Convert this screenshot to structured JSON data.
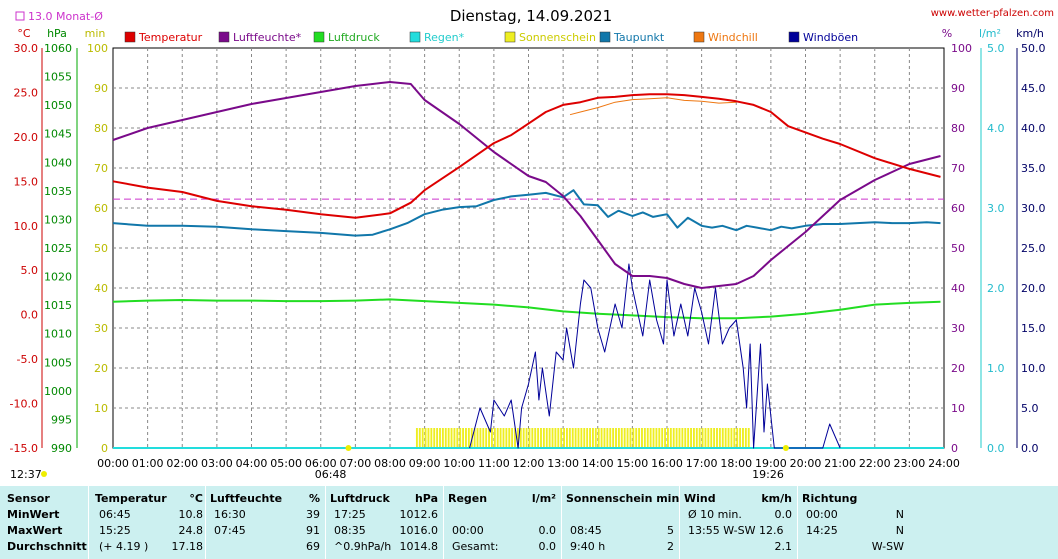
{
  "header": {
    "title": "Dienstag, 14.09.2021",
    "site": "www.wetter-pfalzen.com",
    "month_avg": "13.0 Monat-Ø",
    "sunrise": "06:48",
    "sunset": "19:26",
    "now_time": "12:37"
  },
  "axis_units": {
    "temp": "°C",
    "pressure": "hPa",
    "sun": "min",
    "humidity": "%",
    "rain": "l/m²",
    "wind": "km/h"
  },
  "colors": {
    "temperature": "#dd0000",
    "humidity": "#7a0a8a",
    "pressure": "#22dd22",
    "rain": "#22dddd",
    "sunshine": "#eeee22",
    "dewpoint": "#1177aa",
    "windchill": "#ee7711",
    "gusts": "#000099",
    "month_avg_line": "#cc33cc",
    "stats_bg": "#ccf0f0"
  },
  "chart_data": {
    "type": "line",
    "title": "Dienstag, 14.09.2021",
    "x_ticks": [
      "00:00",
      "01:00",
      "02:00",
      "03:00",
      "04:00",
      "05:00",
      "06:00",
      "07:00",
      "08:00",
      "09:00",
      "10:00",
      "11:00",
      "12:00",
      "13:00",
      "14:00",
      "15:00",
      "16:00",
      "17:00",
      "18:00",
      "19:00",
      "20:00",
      "21:00",
      "22:00",
      "23:00",
      "24:00"
    ],
    "legend": [
      "Temperatur",
      "Luftfeuchte*",
      "Luftdruck",
      "Regen*",
      "Sonnenschein",
      "Taupunkt",
      "Windchill",
      "Windböen"
    ],
    "axes": {
      "temp": {
        "label": "°C",
        "range": [
          -15,
          30
        ],
        "ticks": [
          "30.0",
          "25.0",
          "20.0",
          "15.0",
          "10.0",
          "5.0",
          "0.0",
          "-5.0",
          "-10.0",
          "-15.0"
        ]
      },
      "pressure": {
        "label": "hPa",
        "range": [
          990,
          1060
        ],
        "ticks": [
          "1060",
          "1055",
          "1050",
          "1045",
          "1040",
          "1035",
          "1030",
          "1025",
          "1020",
          "1015",
          "1010",
          "1005",
          "1000",
          "995",
          "990"
        ]
      },
      "sun": {
        "label": "min",
        "range": [
          0,
          100
        ],
        "ticks": [
          "100",
          "90",
          "80",
          "70",
          "60",
          "50",
          "40",
          "30",
          "20",
          "10",
          "0"
        ]
      },
      "humidity": {
        "label": "%",
        "range": [
          0,
          100
        ],
        "ticks": [
          "100",
          "90",
          "80",
          "70",
          "60",
          "50",
          "40",
          "30",
          "20",
          "10",
          "0"
        ]
      },
      "rain": {
        "label": "l/m²",
        "range": [
          0,
          5
        ],
        "ticks": [
          "5.0",
          "4.0",
          "3.0",
          "2.0",
          "1.0",
          "0.0"
        ]
      },
      "wind": {
        "label": "km/h",
        "range": [
          0,
          50
        ],
        "ticks": [
          "50.0",
          "45.0",
          "40.0",
          "35.0",
          "30.0",
          "25.0",
          "20.0",
          "15.0",
          "10.0",
          "5.0",
          "0.0"
        ]
      }
    },
    "month_avg_temp": 13.0,
    "series": [
      {
        "name": "Temperatur",
        "axis": "temp",
        "x": [
          0,
          1,
          2,
          3,
          4,
          5,
          6,
          7,
          8,
          8.6,
          9,
          10,
          11,
          11.5,
          12,
          12.5,
          13,
          13.5,
          14,
          14.5,
          15,
          15.5,
          16,
          16.5,
          17,
          17.5,
          18,
          18.5,
          19,
          19.5,
          20,
          20.5,
          21,
          22,
          23,
          23.9
        ],
        "y": [
          15.0,
          14.3,
          13.8,
          12.8,
          12.2,
          11.8,
          11.3,
          10.9,
          11.4,
          12.6,
          14.0,
          16.6,
          19.3,
          20.2,
          21.5,
          22.8,
          23.6,
          23.9,
          24.4,
          24.5,
          24.7,
          24.8,
          24.8,
          24.7,
          24.5,
          24.3,
          24.0,
          23.6,
          22.8,
          21.2,
          20.5,
          19.8,
          19.2,
          17.6,
          16.4,
          15.5
        ]
      },
      {
        "name": "Luftfeuchte*",
        "axis": "humidity",
        "x": [
          0,
          1,
          2,
          3,
          4,
          5,
          6,
          7,
          7.5,
          8,
          8.6,
          9,
          10,
          11,
          12,
          12.5,
          13,
          13.5,
          14,
          14.5,
          15,
          15.5,
          16,
          16.5,
          17,
          17.5,
          18,
          18.5,
          19,
          20,
          21,
          22,
          23,
          23.9
        ],
        "y": [
          77,
          80,
          82,
          84,
          86,
          87.5,
          89,
          90.5,
          91,
          91.5,
          91,
          87,
          81,
          74,
          68,
          66.5,
          63,
          58,
          52,
          46,
          43,
          43,
          42.5,
          41,
          40,
          40.5,
          41,
          43,
          47,
          54,
          62,
          67,
          71,
          73
        ]
      },
      {
        "name": "Luftdruck",
        "axis": "pressure",
        "x": [
          0,
          1,
          2,
          3,
          4,
          5,
          6,
          7,
          8,
          9,
          10,
          11,
          12,
          13,
          14,
          15,
          16,
          17,
          18,
          19,
          20,
          21,
          22,
          23,
          23.9
        ],
        "y": [
          1015.6,
          1015.8,
          1015.9,
          1015.8,
          1015.8,
          1015.7,
          1015.7,
          1015.8,
          1016.0,
          1015.7,
          1015.4,
          1015.1,
          1014.6,
          1013.9,
          1013.5,
          1013.2,
          1012.9,
          1012.7,
          1012.7,
          1013.0,
          1013.5,
          1014.2,
          1015.1,
          1015.4,
          1015.6
        ]
      },
      {
        "name": "Taupunkt",
        "axis": "temp",
        "x": [
          0,
          1,
          2,
          3,
          4,
          5,
          6,
          7,
          7.5,
          8,
          8.5,
          9,
          9.5,
          10,
          10.5,
          11,
          11.5,
          12,
          12.5,
          13,
          13.3,
          13.6,
          14,
          14.3,
          14.6,
          15,
          15.3,
          15.6,
          16,
          16.3,
          16.6,
          17,
          17.3,
          17.6,
          18,
          18.3,
          18.6,
          19,
          19.3,
          19.6,
          20,
          20.5,
          21,
          21.5,
          22,
          22.5,
          23,
          23.5,
          23.9
        ],
        "y": [
          10.3,
          10.0,
          10.0,
          9.9,
          9.6,
          9.4,
          9.2,
          8.9,
          9.0,
          9.6,
          10.3,
          11.3,
          11.8,
          12.1,
          12.2,
          12.9,
          13.3,
          13.5,
          13.7,
          13.2,
          14.0,
          12.4,
          12.3,
          11.0,
          11.7,
          11.1,
          11.5,
          11.0,
          11.3,
          9.8,
          10.9,
          10.0,
          9.8,
          10.0,
          9.5,
          10.0,
          9.8,
          9.5,
          9.9,
          9.7,
          10.0,
          10.2,
          10.2,
          10.3,
          10.4,
          10.3,
          10.3,
          10.4,
          10.3
        ]
      },
      {
        "name": "Windchill",
        "axis": "temp",
        "x": [
          13.2,
          13.5,
          14,
          14.5,
          15,
          15.5,
          16,
          16.5,
          17,
          17.5,
          18
        ],
        "y": [
          22.5,
          22.8,
          23.3,
          23.9,
          24.2,
          24.3,
          24.4,
          24.1,
          24.0,
          23.8,
          23.9
        ]
      },
      {
        "name": "Windböen",
        "axis": "wind",
        "x": [
          10.3,
          10.6,
          10.9,
          11.0,
          11.3,
          11.5,
          11.7,
          11.8,
          12.0,
          12.2,
          12.3,
          12.4,
          12.6,
          12.8,
          13.0,
          13.1,
          13.3,
          13.5,
          13.6,
          13.8,
          14.0,
          14.2,
          14.4,
          14.5,
          14.7,
          14.9,
          15.0,
          15.1,
          15.3,
          15.5,
          15.7,
          15.9,
          16.0,
          16.2,
          16.4,
          16.6,
          16.8,
          17.0,
          17.2,
          17.4,
          17.6,
          17.8,
          18.0,
          18.2,
          18.3,
          18.4,
          18.5,
          18.7,
          18.8,
          18.9,
          19.1,
          19.3,
          19.5,
          19.7,
          20.0,
          20.2,
          20.5,
          20.7,
          21.0
        ],
        "y": [
          0,
          5,
          2,
          6,
          4,
          6,
          0,
          5,
          8,
          12,
          6,
          10,
          4,
          12,
          11,
          15,
          10,
          18,
          21,
          20,
          15,
          12,
          16,
          18,
          15,
          23,
          20,
          18,
          14,
          21,
          16,
          13,
          21,
          14,
          18,
          14,
          20,
          17,
          13,
          20,
          13,
          15,
          16,
          10,
          5,
          13,
          0,
          13,
          2,
          8,
          0,
          0,
          0,
          0,
          0,
          0,
          0,
          3,
          0
        ]
      },
      {
        "name": "Sonnenschein",
        "axis": "sun",
        "x": [
          8.75,
          18.4
        ],
        "y": [
          5,
          5
        ]
      },
      {
        "name": "Regen*",
        "axis": "rain",
        "x": [
          0,
          24
        ],
        "y": [
          0,
          0
        ]
      }
    ]
  },
  "stats": {
    "rows": [
      "Sensor",
      "MinWert",
      "MaxWert",
      "Durchschnitt"
    ],
    "columns": [
      {
        "title": "Temperatur",
        "unit": "°C",
        "cells": [
          [
            "06:45",
            "10.8"
          ],
          [
            "15:25",
            "24.8"
          ],
          [
            "(+ 4.19 )",
            "17.18"
          ]
        ]
      },
      {
        "title": "Luftfeuchte",
        "unit": "%",
        "cells": [
          [
            "16:30",
            "39"
          ],
          [
            "07:45",
            "91"
          ],
          [
            "",
            "69"
          ]
        ]
      },
      {
        "title": "Luftdruck",
        "unit": "hPa",
        "cells": [
          [
            "17:25",
            "1012.6"
          ],
          [
            "08:35",
            "1016.0"
          ],
          [
            "^0.9hPa/h",
            "1014.8"
          ]
        ]
      },
      {
        "title": "Regen",
        "unit": "l/m²",
        "cells": [
          [
            "",
            ""
          ],
          [
            "00:00",
            "0.0"
          ],
          [
            "Gesamt:",
            "0.0"
          ]
        ]
      },
      {
        "title": "Sonnenschein min",
        "unit": "",
        "cells": [
          [
            "",
            ""
          ],
          [
            "08:45",
            "5"
          ],
          [
            "9:40 h",
            "2"
          ]
        ]
      },
      {
        "title": "Wind",
        "unit": "km/h",
        "cells": [
          [
            "Ø 10 min.",
            "0.0"
          ],
          [
            "13:55   W-SW 12.6",
            ""
          ],
          [
            "",
            "2.1"
          ]
        ]
      },
      {
        "title": "Richtung",
        "unit": "",
        "cells": [
          [
            "00:00",
            "N"
          ],
          [
            "14:25",
            "N"
          ],
          [
            "",
            "W-SW"
          ]
        ]
      }
    ]
  }
}
